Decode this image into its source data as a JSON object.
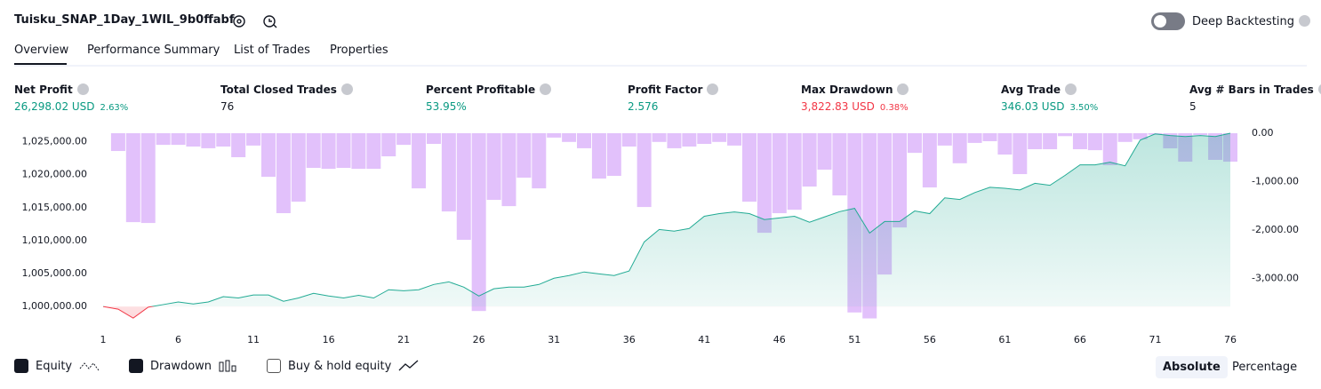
{
  "header": {
    "title": "Tuisku_SNAP_1Day_1WIL_9b0ffabf",
    "toggle_label": "Deep Backtesting"
  },
  "tabs": [
    "Overview",
    "Performance Summary",
    "List of Trades",
    "Properties"
  ],
  "metrics": [
    {
      "label": "Net Profit",
      "value": "26,298.02 USD",
      "sub": "2.63%"
    },
    {
      "label": "Total Closed Trades",
      "value": "76"
    },
    {
      "label": "Percent Profitable",
      "value": "53.95%"
    },
    {
      "label": "Profit Factor",
      "value": "2.576"
    },
    {
      "label": "Max Drawdown",
      "value": "3,822.83 USD",
      "sub": "0.38%"
    },
    {
      "label": "Avg Trade",
      "value": "346.03 USD",
      "sub": "3.50%"
    },
    {
      "label": "Avg # Bars in Trades",
      "value": "5"
    }
  ],
  "chart_data": {
    "type": "combo",
    "x": [
      1,
      2,
      3,
      4,
      5,
      6,
      7,
      8,
      9,
      10,
      11,
      12,
      13,
      14,
      15,
      16,
      17,
      18,
      19,
      20,
      21,
      22,
      23,
      24,
      25,
      26,
      27,
      28,
      29,
      30,
      31,
      32,
      33,
      34,
      35,
      36,
      37,
      38,
      39,
      40,
      41,
      42,
      43,
      44,
      45,
      46,
      47,
      48,
      49,
      50,
      51,
      52,
      53,
      54,
      55,
      56,
      57,
      58,
      59,
      60,
      61,
      62,
      63,
      64,
      65,
      66,
      67,
      68,
      69,
      70,
      71,
      72,
      73,
      74,
      75,
      76
    ],
    "xlim": [
      1,
      76
    ],
    "xticks": [
      1,
      6,
      11,
      16,
      21,
      26,
      31,
      36,
      41,
      46,
      51,
      56,
      61,
      66,
      71,
      76
    ],
    "ylim": [
      998000,
      1026300
    ],
    "yticks": [
      {
        "value": 1000000,
        "label": "1,000,000.00"
      },
      {
        "value": 1005000,
        "label": "1,005,000.00"
      },
      {
        "value": 1010000,
        "label": "1,010,000.00"
      },
      {
        "value": 1015000,
        "label": "1,015,000.00"
      },
      {
        "value": 1020000,
        "label": "1,020,000.00"
      },
      {
        "value": 1025000,
        "label": "1,025,000.00"
      }
    ],
    "y2lim": [
      -3850,
      0
    ],
    "y2ticks": [
      {
        "value": 0,
        "label": "0.00"
      },
      {
        "value": -1000,
        "label": "-1,000.00"
      },
      {
        "value": -2000,
        "label": "-2,000.00"
      },
      {
        "value": -3000,
        "label": "-3,000.00"
      }
    ],
    "series": [
      {
        "name": "Equity",
        "type": "area",
        "color": "#22ab94",
        "negative_color": "#f23645",
        "values": [
          1000000,
          999600,
          998250,
          999900,
          1000300,
          1000700,
          1000400,
          1000700,
          1001500,
          1001300,
          1001750,
          1001750,
          1000800,
          1001300,
          1002000,
          1001600,
          1001300,
          1001700,
          1001300,
          1002550,
          1002400,
          1002550,
          1003350,
          1003750,
          1002950,
          1001600,
          1002700,
          1002950,
          1002950,
          1003350,
          1004300,
          1004700,
          1005250,
          1004950,
          1004700,
          1005400,
          1009800,
          1011700,
          1011450,
          1011850,
          1013700,
          1014100,
          1014350,
          1014100,
          1013200,
          1013450,
          1013700,
          1012800,
          1013600,
          1014400,
          1014900,
          1011150,
          1012900,
          1012900,
          1014500,
          1014100,
          1016500,
          1016250,
          1017300,
          1018100,
          1017950,
          1017700,
          1018700,
          1018400,
          1019900,
          1021500,
          1021500,
          1021900,
          1021350,
          1025250,
          1026200,
          1025950,
          1025800,
          1025950,
          1025800,
          1026298
        ]
      },
      {
        "name": "Drawdown",
        "type": "bar",
        "axis": "y2",
        "color": "#d6a6fa",
        "values": [
          0,
          -367,
          -1835,
          -1853,
          -240,
          -240,
          -275,
          -310,
          -275,
          -495,
          -255,
          -900,
          -1650,
          -1413,
          -715,
          -735,
          -715,
          -735,
          -735,
          -477,
          -240,
          -1138,
          -220,
          -1615,
          -2200,
          -3670,
          -1376,
          -1505,
          -917,
          -1138,
          -90,
          -180,
          -310,
          -936,
          -880,
          -275,
          -1523,
          -180,
          -310,
          -275,
          -220,
          -180,
          -255,
          -1413,
          -2055,
          -1651,
          -1580,
          -1101,
          -752,
          -1284,
          -3700,
          -3822.83,
          -2917,
          -1945,
          -405,
          -1119,
          -255,
          -620,
          -200,
          -165,
          -440,
          -844,
          -330,
          -330,
          -60,
          -330,
          -350,
          -660,
          -180,
          -125,
          -30,
          -312,
          -587,
          -40,
          -550,
          -587
        ]
      },
      {
        "name": "Buy & hold equity"
      }
    ],
    "scale_options": [
      "Absolute",
      "Percentage"
    ]
  }
}
